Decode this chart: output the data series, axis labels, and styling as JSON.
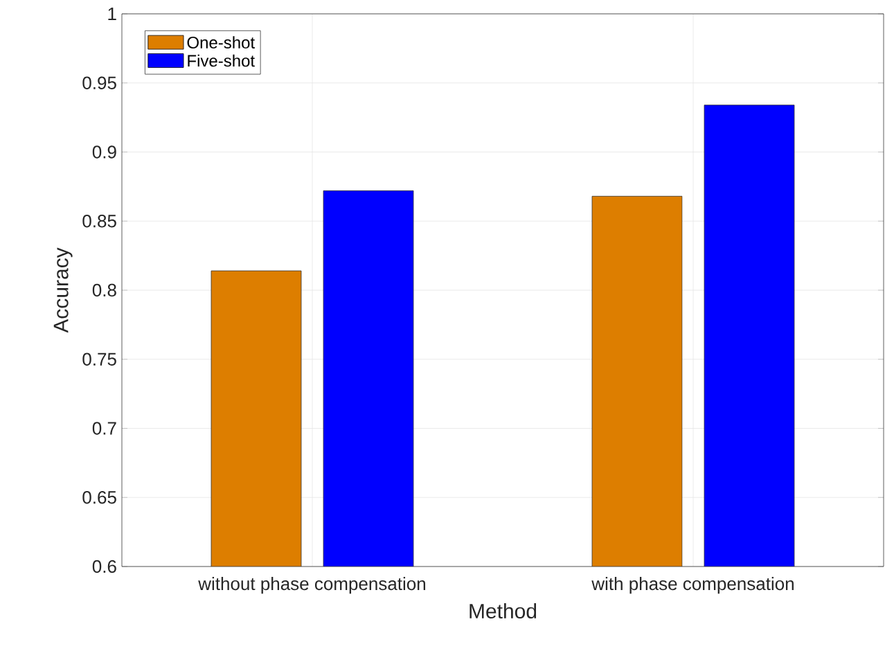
{
  "chart_data": {
    "type": "bar",
    "xlabel": "Method",
    "ylabel": "Accuracy",
    "categories": [
      "without phase compensation",
      "with phase compensation"
    ],
    "series": [
      {
        "name": "One-shot",
        "color": "#dd7e00",
        "values": [
          0.814,
          0.868
        ]
      },
      {
        "name": "Five-shot",
        "color": "#0000ff",
        "values": [
          0.872,
          0.934
        ]
      }
    ],
    "ylim": [
      0.6,
      1
    ],
    "yticks": [
      0.6,
      0.65,
      0.7,
      0.75,
      0.8,
      0.85,
      0.9,
      0.95,
      1
    ],
    "grid": true,
    "legend": "top left"
  }
}
